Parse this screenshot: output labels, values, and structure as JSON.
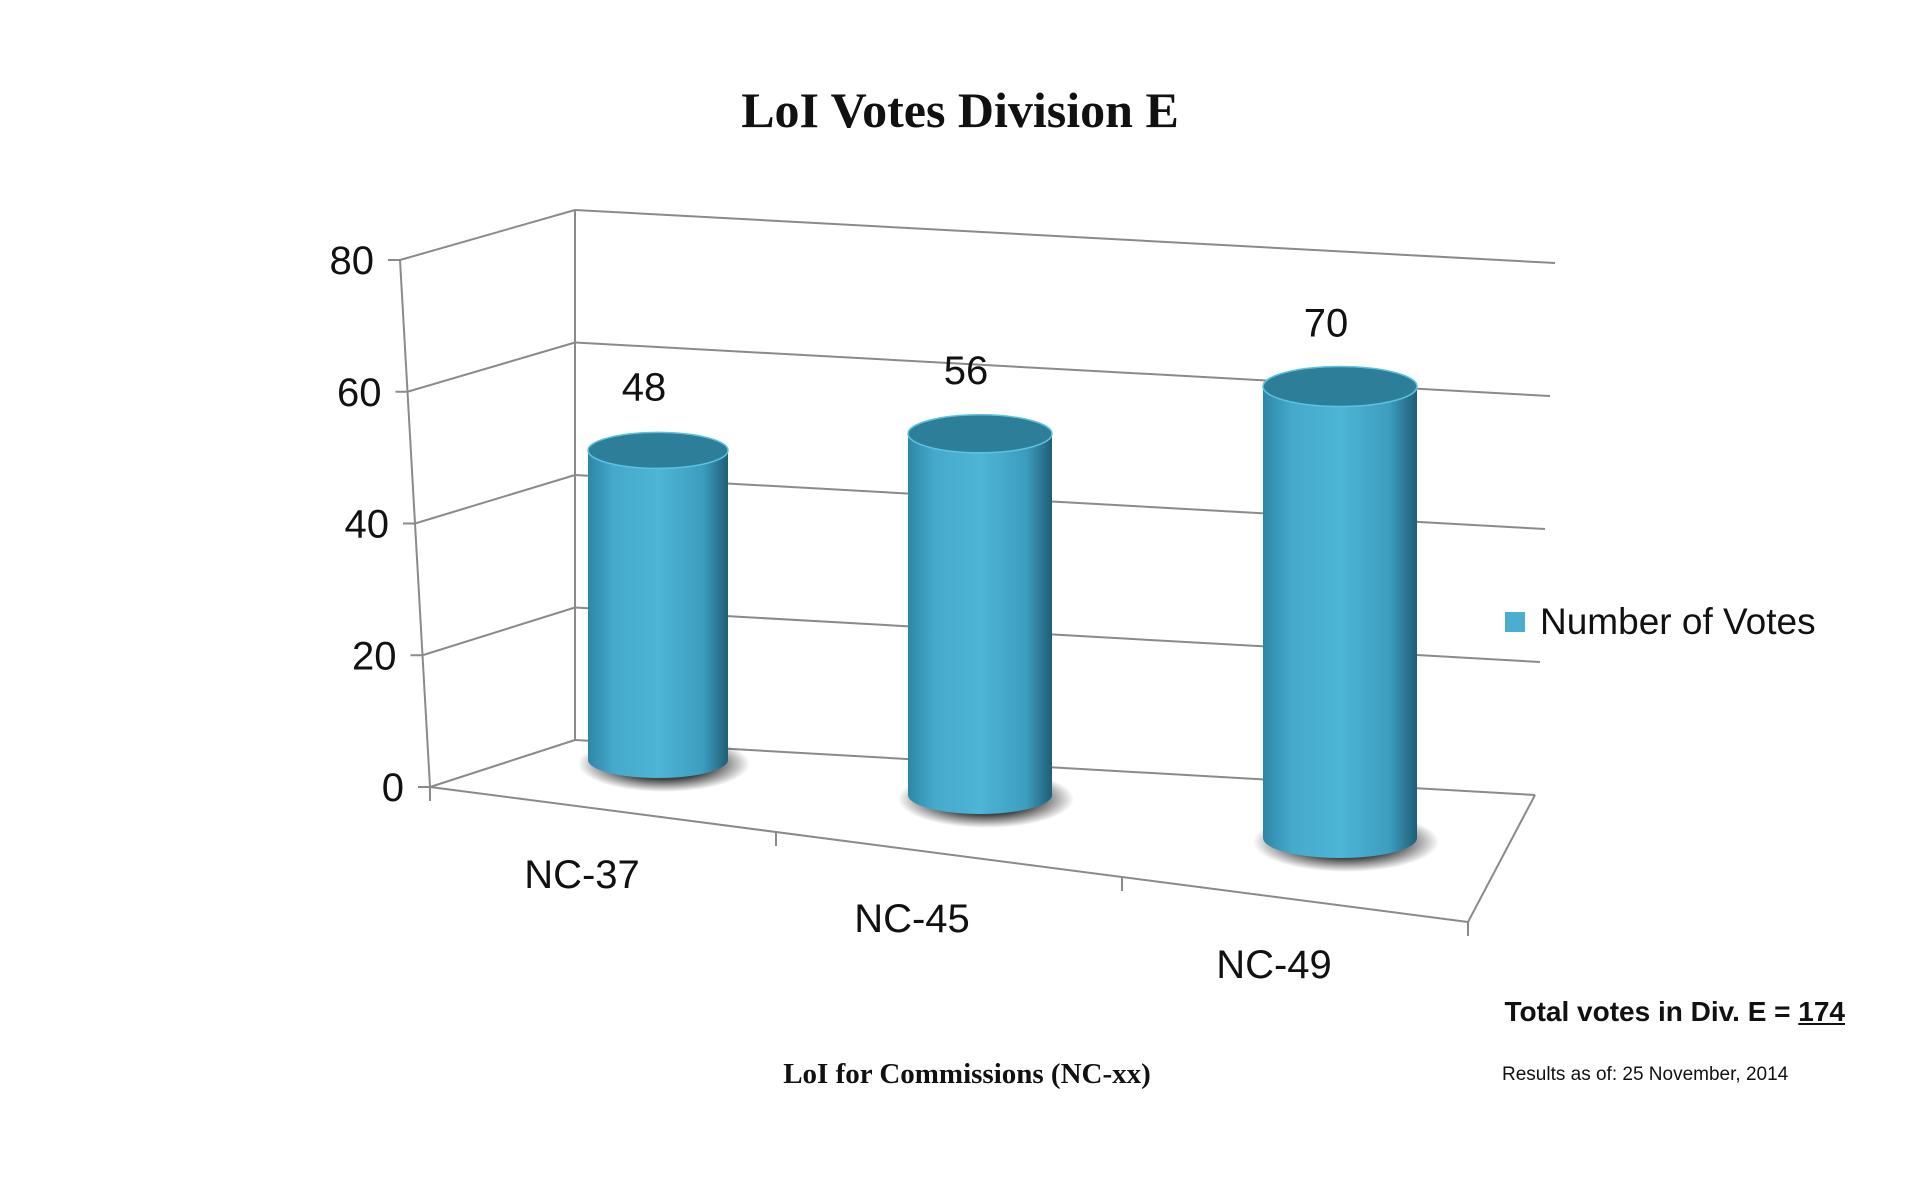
{
  "chart_data": {
    "type": "bar",
    "title": "LoI Votes Division E",
    "xlabel": "LoI for Commissions (NC-xx)",
    "ylabel": "",
    "categories": [
      "NC-37",
      "NC-45",
      "NC-49"
    ],
    "series": [
      {
        "name": "Number of Votes",
        "values": [
          48,
          56,
          70
        ]
      }
    ],
    "ylim": [
      0,
      80
    ],
    "yticks": [
      "0",
      "20",
      "40",
      "60",
      "80"
    ],
    "grid": true,
    "legend": "right",
    "style": "3d-cylinder",
    "colors": {
      "bar": "#4aaed0",
      "bar_dark": "#2d7e99",
      "legend_swatch": "#4aaed0",
      "grid": "#8a8a8a"
    }
  },
  "notes": {
    "total_label": "Total votes in Div. E = ",
    "total_value": "174",
    "results_as_of": "Results as of: 25 November, 2014"
  }
}
